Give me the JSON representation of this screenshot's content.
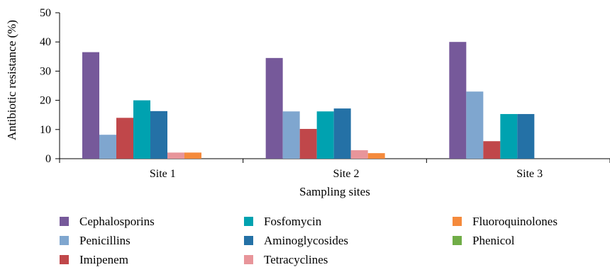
{
  "chart_data": {
    "type": "bar",
    "title": "",
    "xlabel": "Sampling sites",
    "ylabel": "Antibiotic resistance (%)",
    "ylim": [
      0,
      50
    ],
    "yticks": [
      0,
      10,
      20,
      30,
      40,
      50
    ],
    "categories": [
      "Site 1",
      "Site 2",
      "Site 3"
    ],
    "series": [
      {
        "name": "Cephalosporins",
        "color": "#76599a",
        "values": [
          36.5,
          34.5,
          40
        ]
      },
      {
        "name": "Penicillins",
        "color": "#7fa6cf",
        "values": [
          8.2,
          16.2,
          23
        ]
      },
      {
        "name": "Imipenem",
        "color": "#c0474a",
        "values": [
          14,
          10.2,
          6
        ]
      },
      {
        "name": "Fosfomycin",
        "color": "#00a2b0",
        "values": [
          20,
          16.2,
          15.3
        ]
      },
      {
        "name": "Aminoglycosides",
        "color": "#2471a6",
        "values": [
          16.3,
          17.2,
          15.3
        ]
      },
      {
        "name": "Tetracyclines",
        "color": "#e8959a",
        "values": [
          2.1,
          2.9,
          0
        ]
      },
      {
        "name": "Fluoroquinolones",
        "color": "#f58a3c",
        "values": [
          2.1,
          1.9,
          0
        ]
      },
      {
        "name": "Phenicol",
        "color": "#70ad47",
        "values": [
          0,
          0,
          0
        ]
      }
    ],
    "legend_position": "bottom",
    "grid": false
  }
}
